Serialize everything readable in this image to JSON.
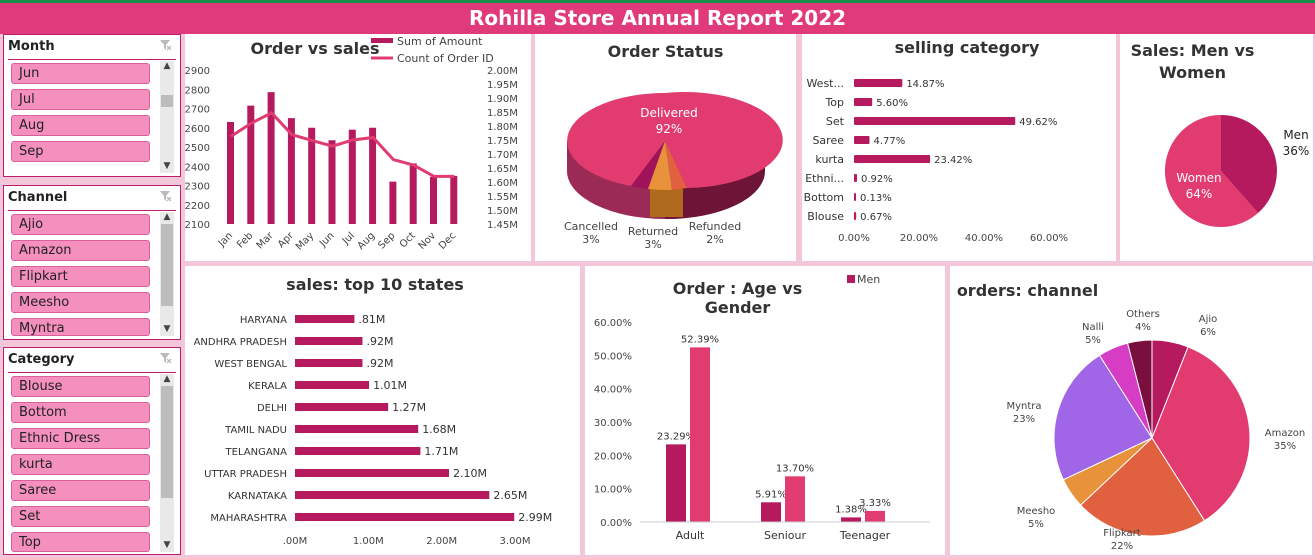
{
  "report_title": "Rohilla Store Annual Report 2022",
  "colors": {
    "primary": "#b5195e",
    "secondary": "#e13b6f",
    "banner": "#e03a7a",
    "slicer_item": "#f48fbe"
  },
  "slicers": {
    "month": {
      "header": "Month",
      "items": [
        "Jun",
        "Jul",
        "Aug",
        "Sep"
      ]
    },
    "channel": {
      "header": "Channel",
      "items": [
        "Ajio",
        "Amazon",
        "Flipkart",
        "Meesho",
        "Myntra"
      ]
    },
    "category": {
      "header": "Category",
      "items": [
        "Blouse",
        "Bottom",
        "Ethnic Dress",
        "kurta",
        "Saree",
        "Set",
        "Top"
      ]
    }
  },
  "charts": {
    "order_vs_sales": {
      "title": "Order vs sales",
      "legend": [
        "Sum of Amount",
        "Count of Order ID"
      ],
      "type": "bar",
      "categories": [
        "Jan",
        "Feb",
        "Mar",
        "Apr",
        "May",
        "Jun",
        "Jul",
        "Aug",
        "Sep",
        "Oct",
        "Nov",
        "Dec"
      ],
      "left_ticks": [
        "2900",
        "2800",
        "2700",
        "2600",
        "2500",
        "2400",
        "2300",
        "2200",
        "2100"
      ],
      "right_ticks": [
        "2.00M",
        "1.95M",
        "1.90M",
        "1.85M",
        "1.80M",
        "1.75M",
        "1.70M",
        "1.65M",
        "1.60M",
        "1.55M",
        "1.50M",
        "1.45M"
      ],
      "amount_values": [
        1.763,
        1.81,
        1.847,
        1.769,
        1.748,
        1.728,
        1.75,
        1.759,
        1.68,
        1.66,
        1.62,
        1.62
      ],
      "order_count_values": [
        2630,
        2715,
        2785,
        2650,
        2600,
        2535,
        2590,
        2600,
        2320,
        2415,
        2345,
        2350
      ],
      "ylim_left": [
        2100,
        2900
      ],
      "ylim_right": [
        1.45,
        2.0
      ]
    },
    "order_status": {
      "title": "Order Status",
      "type": "pie",
      "slices": [
        {
          "label": "Delivered",
          "value": 92,
          "pct": "92%",
          "color": "#e13b6f"
        },
        {
          "label": "Cancelled",
          "value": 3,
          "pct": "3%",
          "color": "#a0135a"
        },
        {
          "label": "Returned",
          "value": 3,
          "pct": "3%",
          "color": "#e8933c"
        },
        {
          "label": "Refunded",
          "value": 2,
          "pct": "2%",
          "color": "#e0603f"
        }
      ]
    },
    "selling_category": {
      "title": "selling category",
      "type": "bar",
      "categories": [
        "West...",
        "Top",
        "Set",
        "Saree",
        "kurta",
        "Ethni...",
        "Bottom",
        "Blouse"
      ],
      "values": [
        14.87,
        5.6,
        49.62,
        4.77,
        23.42,
        0.92,
        0.13,
        0.67
      ],
      "labels": [
        "14.87%",
        "5.60%",
        "49.62%",
        "4.77%",
        "23.42%",
        "0.92%",
        "0.13%",
        "0.67%"
      ],
      "axis_ticks": [
        "0.00%",
        "20.00%",
        "40.00%",
        "60.00%"
      ],
      "xlim": [
        0,
        60
      ]
    },
    "men_vs_women": {
      "title": "Sales: Men vs Women",
      "type": "pie",
      "slices": [
        {
          "label": "Men",
          "value": 36,
          "pct": "36%",
          "color": "#b5195e"
        },
        {
          "label": "Women",
          "value": 64,
          "pct": "64%",
          "color": "#e13b6f"
        }
      ]
    },
    "top_states": {
      "title": "sales: top 10 states",
      "type": "bar",
      "categories": [
        "HARYANA",
        "ANDHRA PRADESH",
        "WEST BENGAL",
        "KERALA",
        "DELHI",
        "TAMIL NADU",
        "TELANGANA",
        "UTTAR PRADESH",
        "KARNATAKA",
        "MAHARASHTRA"
      ],
      "values": [
        0.81,
        0.92,
        0.92,
        1.01,
        1.27,
        1.68,
        1.71,
        2.1,
        2.65,
        2.99
      ],
      "labels": [
        ".81M",
        ".92M",
        ".92M",
        "1.01M",
        "1.27M",
        "1.68M",
        "1.71M",
        "2.10M",
        "2.65M",
        "2.99M"
      ],
      "axis_ticks": [
        ".00M",
        "1.00M",
        "2.00M",
        "3.00M"
      ],
      "xlim": [
        0,
        3
      ]
    },
    "age_gender": {
      "title": "Order : Age vs Gender",
      "legend": "Men",
      "type": "bar",
      "categories": [
        "Adult",
        "Seniour",
        "Teenager"
      ],
      "series": [
        {
          "name": "Men",
          "values": [
            23.29,
            5.91,
            1.38
          ],
          "labels": [
            "23.29%",
            "5.91%",
            "1.38%"
          ]
        },
        {
          "values": [
            52.39,
            13.7,
            3.33
          ],
          "labels": [
            "52.39%",
            "13.70%",
            "3.33%"
          ]
        }
      ],
      "axis_ticks": [
        "0.00%",
        "10.00%",
        "20.00%",
        "30.00%",
        "40.00%",
        "50.00%",
        "60.00%"
      ],
      "ylim": [
        0,
        60
      ]
    },
    "orders_channel": {
      "title": "orders: channel",
      "type": "pie",
      "slices": [
        {
          "label": "Ajio",
          "value": 6,
          "pct": "6%",
          "color": "#b5195e"
        },
        {
          "label": "Amazon",
          "value": 35,
          "pct": "35%",
          "color": "#e13b6f"
        },
        {
          "label": "Flipkart",
          "value": 22,
          "pct": "22%",
          "color": "#e0603f"
        },
        {
          "label": "Meesho",
          "value": 5,
          "pct": "5%",
          "color": "#e8933c"
        },
        {
          "label": "Myntra",
          "value": 23,
          "pct": "23%",
          "color": "#a166e8"
        },
        {
          "label": "Nalli",
          "value": 5,
          "pct": "5%",
          "color": "#d63cc4"
        },
        {
          "label": "Others",
          "value": 4,
          "pct": "4%",
          "color": "#7a0f3f"
        }
      ]
    }
  }
}
